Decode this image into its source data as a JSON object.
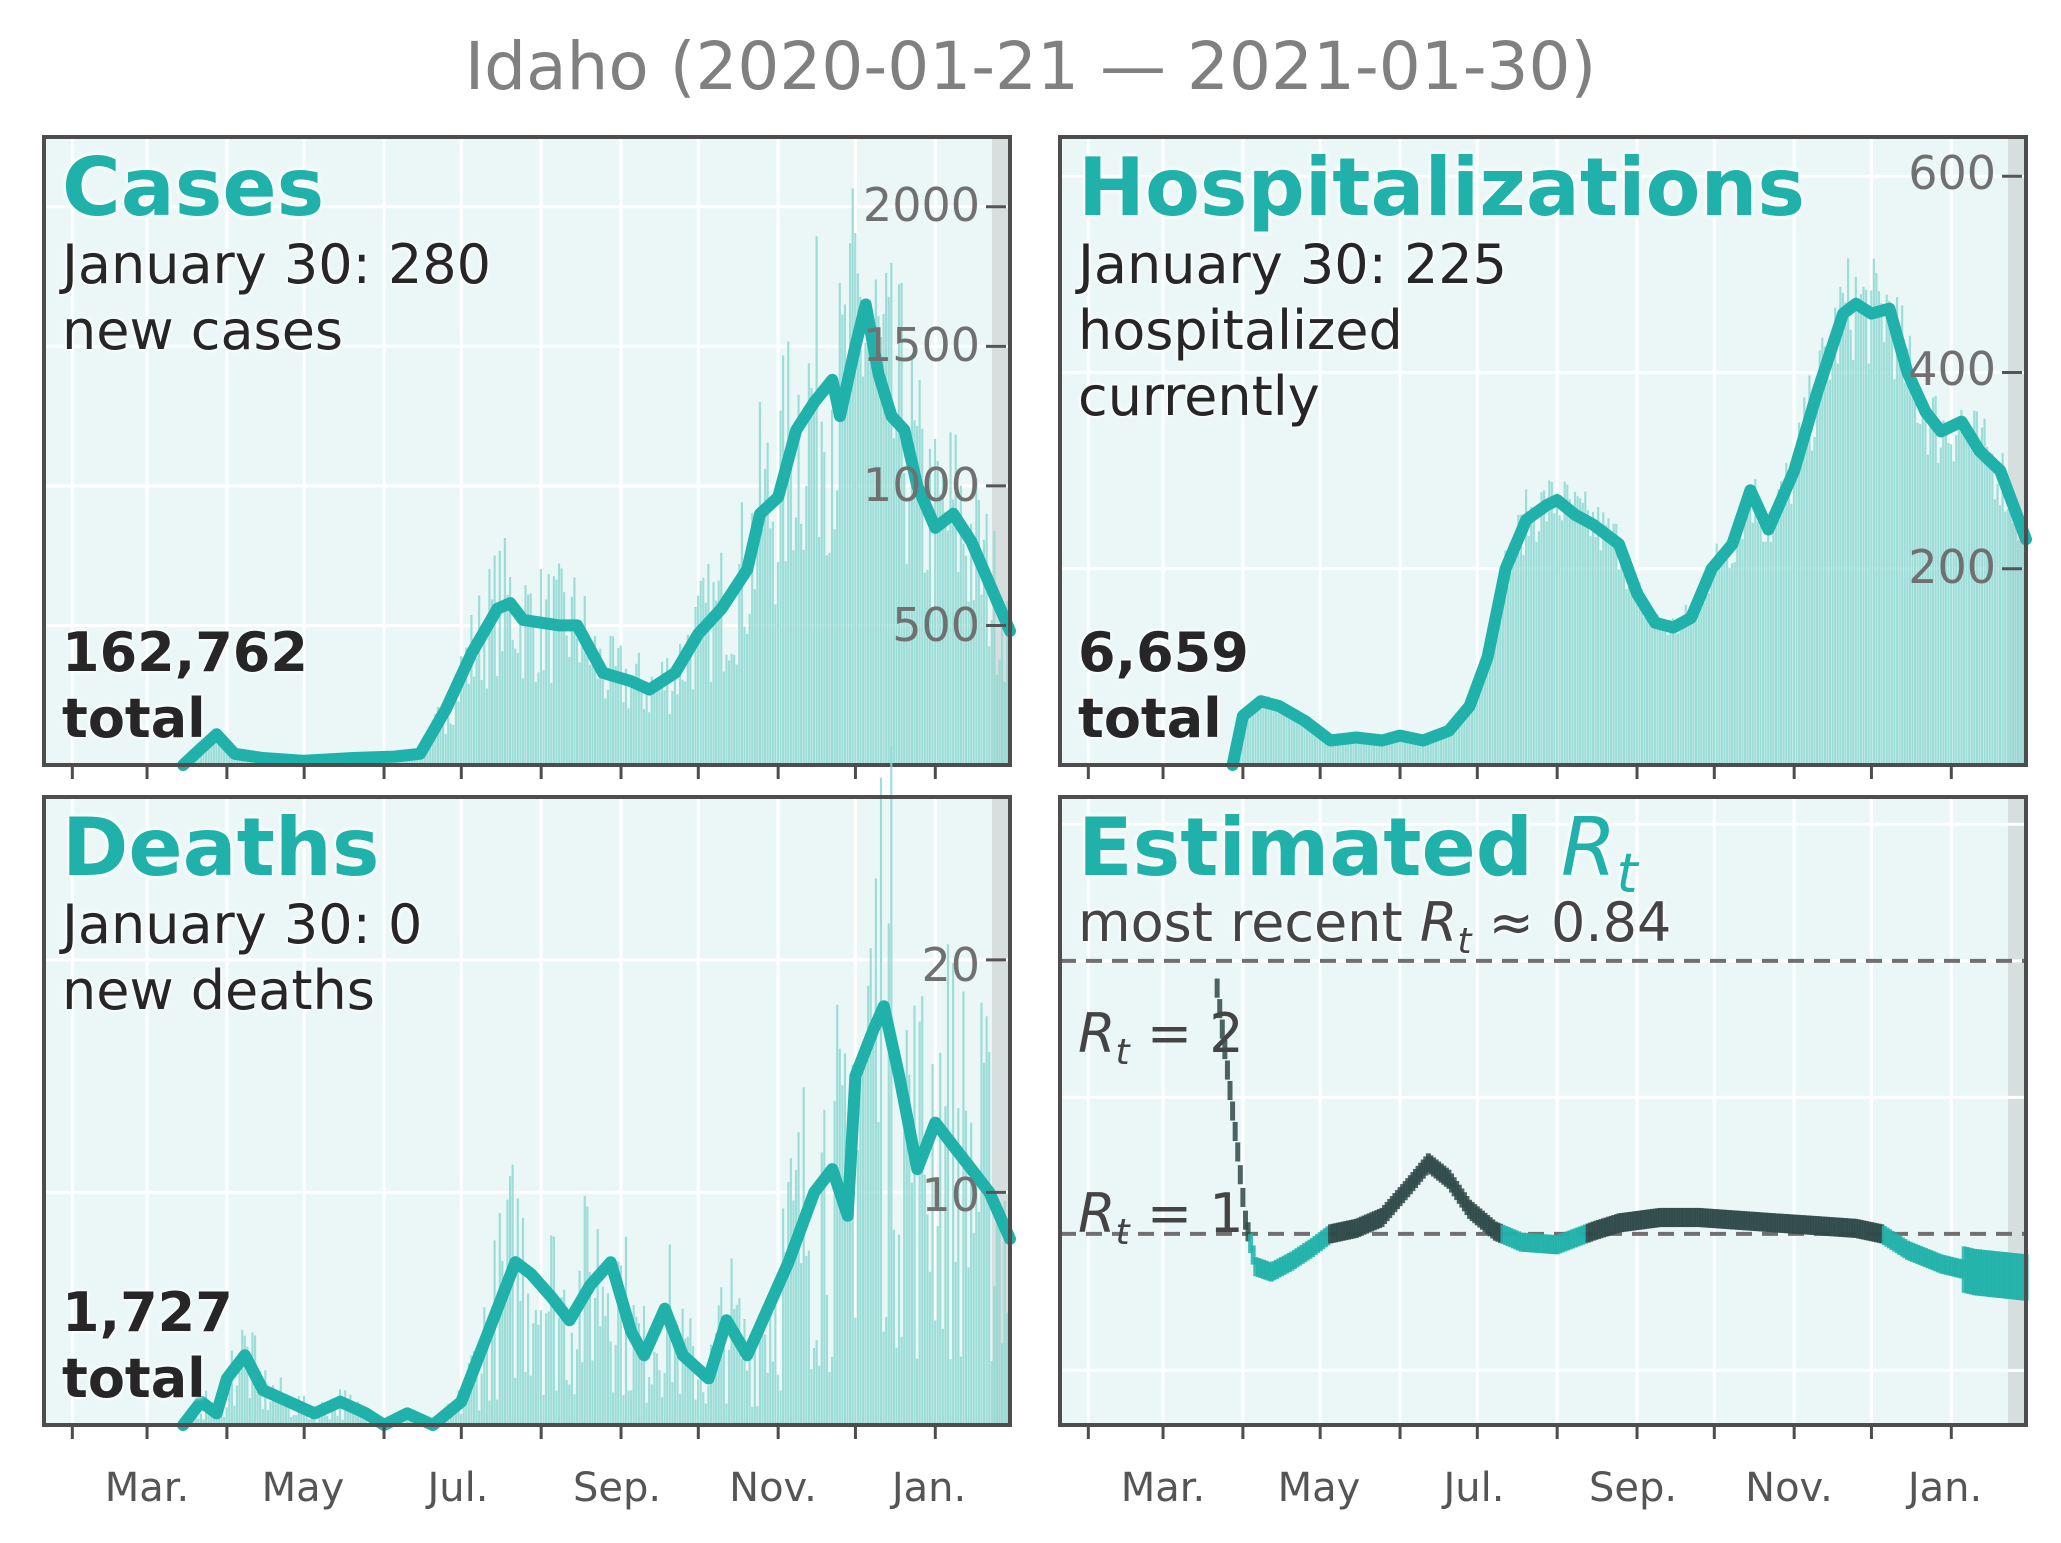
{
  "title": "Idaho (2020-01-21 — 2021-01-30)",
  "x_tick_labels": [
    "Mar.",
    "May",
    "Jul.",
    "Sep.",
    "Nov.",
    "Jan."
  ],
  "panels": {
    "cases": {
      "title": "Cases",
      "line1": "January 30: 280",
      "line2": "new cases",
      "total_value": "162,762",
      "total_word": "total",
      "y_ticks": [
        "500",
        "1000",
        "1500",
        "2000"
      ]
    },
    "hosp": {
      "title": "Hospitalizations",
      "line1": "January 30: 225",
      "line2": "hospitalized",
      "line3": "currently",
      "total_value": "6,659",
      "total_word": "total",
      "y_ticks": [
        "200",
        "400",
        "600"
      ]
    },
    "deaths": {
      "title": "Deaths",
      "line1": "January 30: 0",
      "line2": "new deaths",
      "total_value": "1,727",
      "total_word": "total",
      "y_ticks": [
        "10",
        "20"
      ]
    },
    "rt": {
      "title_main": "Estimated ",
      "title_sym": "R",
      "title_sub": "t",
      "subtitle_pre": "most recent ",
      "subtitle_sym": "R",
      "subtitle_sub": "t",
      "subtitle_post": " ≈ 0.84",
      "line2_sym": "R",
      "line2_sub": "t",
      "line2_post": " = 2",
      "line1_sym": "R",
      "line1_sub": "t",
      "line1_post": " = 1"
    }
  },
  "colors": {
    "accent": "#20b2aa",
    "bar": "#8fd8d2",
    "bg": "#ebf7f7",
    "shade": "#d6dede",
    "dark": "#2e4a48",
    "title": "#808080"
  },
  "chart_data": [
    {
      "type": "bar",
      "name": "cases",
      "x_start": "2020-01-21",
      "x_end": "2021-01-30",
      "ylim": [
        0,
        2250
      ],
      "smoothed": [
        [
          "2020-03-15",
          0
        ],
        [
          "2020-03-22",
          60
        ],
        [
          "2020-03-28",
          110
        ],
        [
          "2020-04-04",
          40
        ],
        [
          "2020-04-15",
          25
        ],
        [
          "2020-05-01",
          15
        ],
        [
          "2020-05-20",
          25
        ],
        [
          "2020-06-05",
          30
        ],
        [
          "2020-06-15",
          40
        ],
        [
          "2020-06-25",
          200
        ],
        [
          "2020-07-05",
          400
        ],
        [
          "2020-07-15",
          560
        ],
        [
          "2020-07-20",
          580
        ],
        [
          "2020-07-25",
          520
        ],
        [
          "2020-08-01",
          510
        ],
        [
          "2020-08-08",
          500
        ],
        [
          "2020-08-15",
          500
        ],
        [
          "2020-08-25",
          330
        ],
        [
          "2020-09-05",
          300
        ],
        [
          "2020-09-12",
          270
        ],
        [
          "2020-09-22",
          330
        ],
        [
          "2020-10-01",
          470
        ],
        [
          "2020-10-10",
          560
        ],
        [
          "2020-10-20",
          700
        ],
        [
          "2020-10-25",
          900
        ],
        [
          "2020-11-01",
          960
        ],
        [
          "2020-11-08",
          1200
        ],
        [
          "2020-11-15",
          1300
        ],
        [
          "2020-11-22",
          1380
        ],
        [
          "2020-11-25",
          1250
        ],
        [
          "2020-12-01",
          1500
        ],
        [
          "2020-12-05",
          1650
        ],
        [
          "2020-12-10",
          1400
        ],
        [
          "2020-12-15",
          1250
        ],
        [
          "2020-12-20",
          1200
        ],
        [
          "2020-12-25",
          1000
        ],
        [
          "2021-01-01",
          850
        ],
        [
          "2021-01-08",
          900
        ],
        [
          "2021-01-15",
          800
        ],
        [
          "2021-01-22",
          650
        ],
        [
          "2021-01-30",
          480
        ]
      ]
    },
    {
      "type": "bar",
      "name": "hospitalizations",
      "x_start": "2020-01-21",
      "x_end": "2021-01-30",
      "ylim": [
        0,
        640
      ],
      "smoothed": [
        [
          "2020-03-28",
          0
        ],
        [
          "2020-04-01",
          50
        ],
        [
          "2020-04-08",
          65
        ],
        [
          "2020-04-15",
          60
        ],
        [
          "2020-04-25",
          45
        ],
        [
          "2020-05-05",
          25
        ],
        [
          "2020-05-15",
          28
        ],
        [
          "2020-05-25",
          25
        ],
        [
          "2020-06-01",
          30
        ],
        [
          "2020-06-10",
          25
        ],
        [
          "2020-06-20",
          35
        ],
        [
          "2020-06-28",
          60
        ],
        [
          "2020-07-05",
          110
        ],
        [
          "2020-07-12",
          200
        ],
        [
          "2020-07-20",
          250
        ],
        [
          "2020-07-28",
          265
        ],
        [
          "2020-08-01",
          270
        ],
        [
          "2020-08-08",
          255
        ],
        [
          "2020-08-15",
          245
        ],
        [
          "2020-08-25",
          225
        ],
        [
          "2020-09-01",
          175
        ],
        [
          "2020-09-08",
          145
        ],
        [
          "2020-09-15",
          140
        ],
        [
          "2020-09-22",
          150
        ],
        [
          "2020-09-30",
          200
        ],
        [
          "2020-10-08",
          225
        ],
        [
          "2020-10-15",
          280
        ],
        [
          "2020-10-22",
          240
        ],
        [
          "2020-11-01",
          300
        ],
        [
          "2020-11-10",
          380
        ],
        [
          "2020-11-20",
          460
        ],
        [
          "2020-11-25",
          470
        ],
        [
          "2020-12-01",
          460
        ],
        [
          "2020-12-08",
          465
        ],
        [
          "2020-12-15",
          400
        ],
        [
          "2020-12-22",
          360
        ],
        [
          "2020-12-28",
          340
        ],
        [
          "2021-01-05",
          350
        ],
        [
          "2021-01-12",
          320
        ],
        [
          "2021-01-20",
          300
        ],
        [
          "2021-01-30",
          230
        ]
      ]
    },
    {
      "type": "bar",
      "name": "deaths",
      "x_start": "2020-01-21",
      "x_end": "2021-01-30",
      "ylim": [
        0,
        27
      ],
      "smoothed": [
        [
          "2020-03-15",
          0
        ],
        [
          "2020-03-22",
          1
        ],
        [
          "2020-03-28",
          0.5
        ],
        [
          "2020-04-01",
          2
        ],
        [
          "2020-04-08",
          3
        ],
        [
          "2020-04-15",
          1.5
        ],
        [
          "2020-04-25",
          1
        ],
        [
          "2020-05-05",
          0.5
        ],
        [
          "2020-05-15",
          1
        ],
        [
          "2020-05-25",
          0.5
        ],
        [
          "2020-06-01",
          0
        ],
        [
          "2020-06-10",
          0.5
        ],
        [
          "2020-06-20",
          0
        ],
        [
          "2020-07-01",
          1
        ],
        [
          "2020-07-08",
          3
        ],
        [
          "2020-07-15",
          5
        ],
        [
          "2020-07-22",
          7
        ],
        [
          "2020-07-28",
          6.5
        ],
        [
          "2020-08-05",
          5.5
        ],
        [
          "2020-08-12",
          4.5
        ],
        [
          "2020-08-20",
          6
        ],
        [
          "2020-08-28",
          7
        ],
        [
          "2020-09-05",
          4
        ],
        [
          "2020-09-10",
          3
        ],
        [
          "2020-09-18",
          5
        ],
        [
          "2020-09-25",
          3
        ],
        [
          "2020-10-05",
          2
        ],
        [
          "2020-10-12",
          4.5
        ],
        [
          "2020-10-20",
          3
        ],
        [
          "2020-10-28",
          5
        ],
        [
          "2020-11-05",
          7
        ],
        [
          "2020-11-15",
          10
        ],
        [
          "2020-11-22",
          11
        ],
        [
          "2020-11-28",
          9
        ],
        [
          "2020-12-01",
          15
        ],
        [
          "2020-12-08",
          17
        ],
        [
          "2020-12-12",
          18
        ],
        [
          "2020-12-18",
          15
        ],
        [
          "2020-12-25",
          11
        ],
        [
          "2021-01-01",
          13
        ],
        [
          "2021-01-08",
          12
        ],
        [
          "2021-01-15",
          11
        ],
        [
          "2021-01-22",
          10
        ],
        [
          "2021-01-30",
          8
        ]
      ]
    },
    {
      "type": "line",
      "name": "rt",
      "x_start": "2020-01-21",
      "x_end": "2021-01-30",
      "ylim": [
        0.3,
        2.6
      ],
      "reference_lines": [
        1,
        2
      ],
      "estimate": [
        [
          "2020-03-22",
          1.9
        ],
        [
          "2020-03-26",
          1.6
        ],
        [
          "2020-03-30",
          1.3
        ],
        [
          "2020-04-02",
          1.05
        ],
        [
          "2020-04-06",
          0.88
        ],
        [
          "2020-04-12",
          0.86
        ],
        [
          "2020-04-20",
          0.9
        ],
        [
          "2020-04-28",
          0.95
        ],
        [
          "2020-05-05",
          1.0
        ],
        [
          "2020-05-15",
          1.02
        ],
        [
          "2020-05-25",
          1.06
        ],
        [
          "2020-06-05",
          1.18
        ],
        [
          "2020-06-12",
          1.26
        ],
        [
          "2020-06-20",
          1.2
        ],
        [
          "2020-06-28",
          1.09
        ],
        [
          "2020-07-08",
          1.01
        ],
        [
          "2020-07-18",
          0.97
        ],
        [
          "2020-08-01",
          0.96
        ],
        [
          "2020-08-15",
          1.01
        ],
        [
          "2020-08-25",
          1.04
        ],
        [
          "2020-09-10",
          1.06
        ],
        [
          "2020-09-25",
          1.06
        ],
        [
          "2020-10-10",
          1.05
        ],
        [
          "2020-10-25",
          1.04
        ],
        [
          "2020-11-10",
          1.03
        ],
        [
          "2020-11-25",
          1.02
        ],
        [
          "2020-12-05",
          1.0
        ],
        [
          "2020-12-15",
          0.94
        ],
        [
          "2020-12-28",
          0.89
        ],
        [
          "2021-01-10",
          0.86
        ],
        [
          "2021-01-20",
          0.85
        ],
        [
          "2021-01-30",
          0.84
        ]
      ]
    }
  ]
}
